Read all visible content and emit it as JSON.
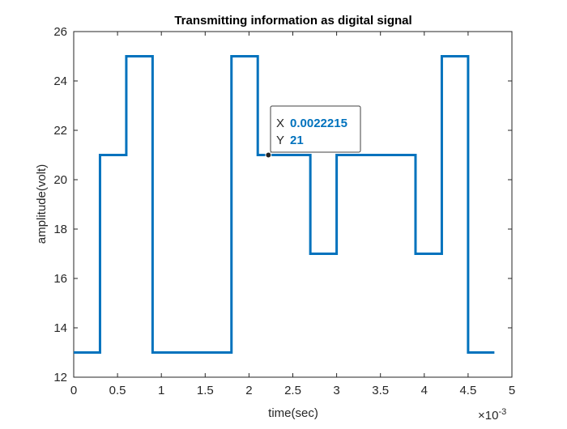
{
  "chart_data": {
    "type": "line",
    "title": "Transmitting information as digital signal",
    "xlabel": "time(sec)",
    "ylabel": "amplitude(volt)",
    "x_exponent_label": "×10",
    "x_exponent_power": "-3",
    "xlim": [
      0,
      0.005
    ],
    "ylim": [
      12,
      26
    ],
    "x_ticks": [
      0,
      0.0005,
      0.001,
      0.0015,
      0.002,
      0.0025,
      0.003,
      0.0035,
      0.004,
      0.0045,
      0.005
    ],
    "x_tick_labels": [
      "0",
      "0.5",
      "1",
      "1.5",
      "2",
      "2.5",
      "3",
      "3.5",
      "4",
      "4.5",
      "5"
    ],
    "y_ticks": [
      12,
      14,
      16,
      18,
      20,
      22,
      24,
      26
    ],
    "y_tick_labels": [
      "12",
      "14",
      "16",
      "18",
      "20",
      "22",
      "24",
      "26"
    ],
    "grid": false,
    "line_color": "#0072BD",
    "series": [
      {
        "step": "post",
        "x": [
          0,
          0.0003,
          0.0006,
          0.0009,
          0.0012,
          0.0015,
          0.0018,
          0.0021,
          0.0024,
          0.0027,
          0.003,
          0.0033,
          0.0036,
          0.0039,
          0.0042,
          0.0045,
          0.0048
        ],
        "values": [
          13,
          21,
          25,
          13,
          13,
          13,
          25,
          21,
          21,
          17,
          21,
          21,
          21,
          17,
          25,
          13,
          13
        ]
      }
    ],
    "datatip": {
      "x": 0.0022215,
      "y": 21,
      "x_key": "X",
      "y_key": "Y",
      "x_text": "0.0022215",
      "y_text": "21"
    }
  }
}
